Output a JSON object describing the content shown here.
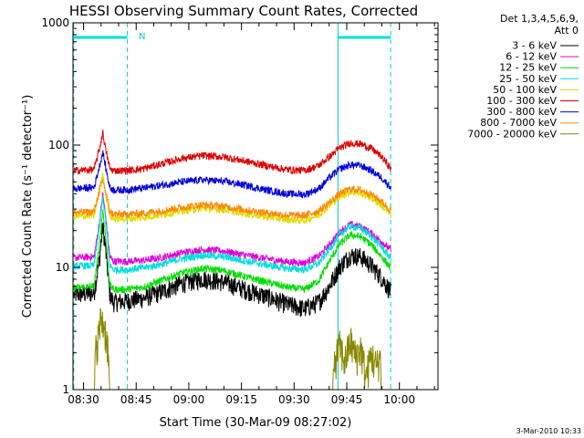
{
  "chart_data": {
    "type": "line",
    "title": "HESSI Observing Summary Count Rates, Corrected",
    "xlabel": "Start Time (30-Mar-09 08:27:02)",
    "ylabel": "Corrected Count Rate (s⁻¹ detector⁻¹)",
    "x_ticks": [
      "08:30",
      "08:45",
      "09:00",
      "09:15",
      "09:30",
      "09:45",
      "10:00"
    ],
    "x_ticks_min": [
      30,
      45,
      60,
      75,
      90,
      105,
      120
    ],
    "xlim_min": [
      27.0,
      131.0
    ],
    "y_scale": "log",
    "ylim": [
      1,
      1000
    ],
    "y_ticks": [
      "1",
      "10",
      "100",
      "1000"
    ],
    "legend_title": [
      "Det 1,3,4,5,6,9,",
      "Att 0"
    ],
    "legend_position": "right",
    "annotation_N": "N",
    "night_bars_min": [
      [
        27.2,
        42.5
      ],
      [
        102.5,
        117.5
      ]
    ],
    "saa_lines_min": [
      27.2,
      42.5,
      102.5,
      117.5
    ],
    "timestamp": "3-Mar-2010 10:33",
    "series": [
      {
        "name": "3 - 6 keV",
        "color": "#000000",
        "x": [
          27.2,
          33,
          34.6,
          35.5,
          36.3,
          37.5,
          38.5,
          42,
          47,
          52,
          58,
          64,
          70,
          76,
          82,
          88,
          93,
          97,
          100,
          103,
          106,
          109,
          112,
          115,
          117.6
        ],
        "y": [
          6.0,
          6.2,
          12,
          22,
          14,
          6.0,
          5.2,
          5.3,
          5.6,
          6.3,
          7.4,
          8.1,
          7.6,
          6.6,
          5.8,
          5.0,
          4.6,
          5.2,
          7.0,
          10.2,
          12.6,
          12.3,
          10.4,
          8.2,
          6.3
        ]
      },
      {
        "name": "6 - 12 keV",
        "color": "#dd00dd",
        "x": [
          27.2,
          33,
          34.6,
          35.5,
          36.3,
          37.5,
          38.5,
          42,
          47,
          52,
          58,
          64,
          70,
          76,
          82,
          88,
          93,
          97,
          100,
          103,
          106,
          109,
          112,
          115,
          117.6
        ],
        "y": [
          12.0,
          12.2,
          24,
          40,
          26,
          12.2,
          11.2,
          11.2,
          11.4,
          12.0,
          13.2,
          14.0,
          13.6,
          12.6,
          11.8,
          11.1,
          10.9,
          12.3,
          15.2,
          19.5,
          22.5,
          21.5,
          19.0,
          16.2,
          13.8
        ]
      },
      {
        "name": "12 - 25 keV",
        "color": "#00dd00",
        "x": [
          27.2,
          33,
          34.6,
          35.5,
          36.3,
          37.5,
          38.5,
          42,
          47,
          52,
          58,
          64,
          70,
          76,
          82,
          88,
          93,
          97,
          100,
          103,
          106,
          109,
          112,
          115,
          117.6
        ],
        "y": [
          6.8,
          7.0,
          16,
          30,
          18,
          7.2,
          6.6,
          6.6,
          6.9,
          7.8,
          9.0,
          9.8,
          9.4,
          8.4,
          7.6,
          6.9,
          6.6,
          7.8,
          11.2,
          15.5,
          18.5,
          17.8,
          15.3,
          12.2,
          9.8
        ]
      },
      {
        "name": "25 - 50 keV",
        "color": "#00dddd",
        "x": [
          27.2,
          33,
          34.6,
          35.5,
          36.3,
          37.5,
          38.5,
          42,
          47,
          52,
          58,
          64,
          70,
          76,
          82,
          88,
          93,
          97,
          100,
          103,
          106,
          109,
          112,
          115,
          117.6
        ],
        "y": [
          10.2,
          10.4,
          22,
          38,
          24,
          10.4,
          9.6,
          9.6,
          9.9,
          10.6,
          11.8,
          12.6,
          12.2,
          11.3,
          10.5,
          9.8,
          9.6,
          10.8,
          14.0,
          18.6,
          21.8,
          21.0,
          18.0,
          14.6,
          11.8
        ]
      },
      {
        "name": "50 - 100 keV",
        "color": "#dddd00",
        "x": [
          27.2,
          33,
          34.6,
          35.5,
          36.3,
          37.5,
          38.5,
          42,
          47,
          52,
          58,
          64,
          70,
          76,
          82,
          88,
          93,
          97,
          100,
          103,
          106,
          109,
          112,
          115,
          117.6
        ],
        "y": [
          26,
          26.5,
          42,
          58,
          40,
          26.5,
          25,
          25,
          25.6,
          27,
          29,
          30.5,
          29.6,
          27.6,
          26,
          24.6,
          24.3,
          27,
          32,
          38,
          41.5,
          40.5,
          37,
          32,
          27
        ]
      },
      {
        "name": "100 - 300 keV",
        "color": "#dd0000",
        "x": [
          27.2,
          33,
          34.6,
          35.5,
          36.3,
          37.5,
          38.5,
          42,
          47,
          52,
          58,
          64,
          70,
          76,
          82,
          88,
          93,
          97,
          100,
          103,
          106,
          109,
          112,
          115,
          117.6
        ],
        "y": [
          62,
          63,
          95,
          128,
          92,
          64,
          62,
          62,
          64,
          70,
          78,
          82,
          80,
          74,
          68,
          63,
          62,
          68,
          80,
          95,
          104,
          102,
          94,
          80,
          64
        ]
      },
      {
        "name": "300 - 800 keV",
        "color": "#0000dd",
        "x": [
          27.2,
          33,
          34.6,
          35.5,
          36.3,
          37.5,
          38.5,
          42,
          47,
          52,
          58,
          64,
          70,
          76,
          82,
          88,
          93,
          97,
          100,
          103,
          106,
          109,
          112,
          115,
          117.6
        ],
        "y": [
          44,
          45,
          68,
          88,
          66,
          45,
          43,
          43,
          44.5,
          47,
          50,
          52,
          50.5,
          47,
          43,
          40,
          39.5,
          44,
          54,
          64,
          69,
          68,
          62,
          54,
          45
        ]
      },
      {
        "name": "800 - 7000 keV",
        "color": "#ff8800",
        "x": [
          27.2,
          33,
          34.6,
          35.5,
          36.3,
          37.5,
          38.5,
          42,
          47,
          52,
          58,
          64,
          70,
          76,
          82,
          88,
          93,
          97,
          100,
          103,
          106,
          109,
          112,
          115,
          117.6
        ],
        "y": [
          28,
          28.5,
          44,
          52,
          42,
          28.5,
          27.2,
          27.2,
          27.8,
          29,
          31,
          32.5,
          31.6,
          29.6,
          28,
          26.8,
          26.6,
          29,
          34,
          40,
          44,
          43,
          39.5,
          34.5,
          29
        ]
      },
      {
        "name": "7000 - 20000 keV",
        "color": "#888800",
        "x": [
          27.2,
          32,
          33,
          33.5,
          34,
          34.5,
          35,
          35.5,
          36,
          36.5,
          37,
          37.5,
          38,
          42,
          101,
          101.5,
          103,
          104.5,
          106,
          107.5,
          109,
          110.5,
          112,
          113.5,
          114.5,
          115,
          117.6
        ],
        "y": [
          1,
          1,
          1,
          2.6,
          3.0,
          3.6,
          4.5,
          4.2,
          3.8,
          3.2,
          2.5,
          1,
          1,
          1,
          1,
          2.0,
          2.7,
          2.0,
          3.0,
          2.2,
          2.6,
          1.5,
          2.3,
          1.8,
          2.3,
          1,
          1
        ]
      }
    ]
  }
}
